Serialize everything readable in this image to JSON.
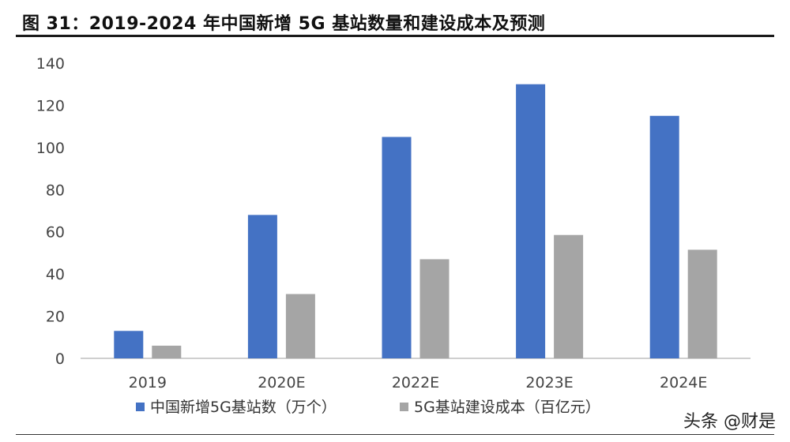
{
  "figure": {
    "title": "图 31：2019-2024 年中国新增 5G 基站数量和建设成本及预测"
  },
  "watermark": "头条 @财是",
  "chart_data": {
    "type": "bar",
    "categories": [
      "2019",
      "2020E",
      "2022E",
      "2023E",
      "2024E"
    ],
    "series": [
      {
        "name": "中国新增5G基站数（万个）",
        "color": "#4472c4",
        "values": [
          13,
          68,
          105,
          130,
          115
        ]
      },
      {
        "name": "5G基站建设成本（百亿元）",
        "color": "#a5a5a5",
        "values": [
          6,
          30.5,
          47,
          58.5,
          51.5
        ]
      }
    ],
    "ylim": [
      0,
      140
    ],
    "yticks": [
      0,
      20,
      40,
      60,
      80,
      100,
      120,
      140
    ],
    "xlabel": "",
    "ylabel": "",
    "grid": false,
    "legend_position": "bottom"
  }
}
